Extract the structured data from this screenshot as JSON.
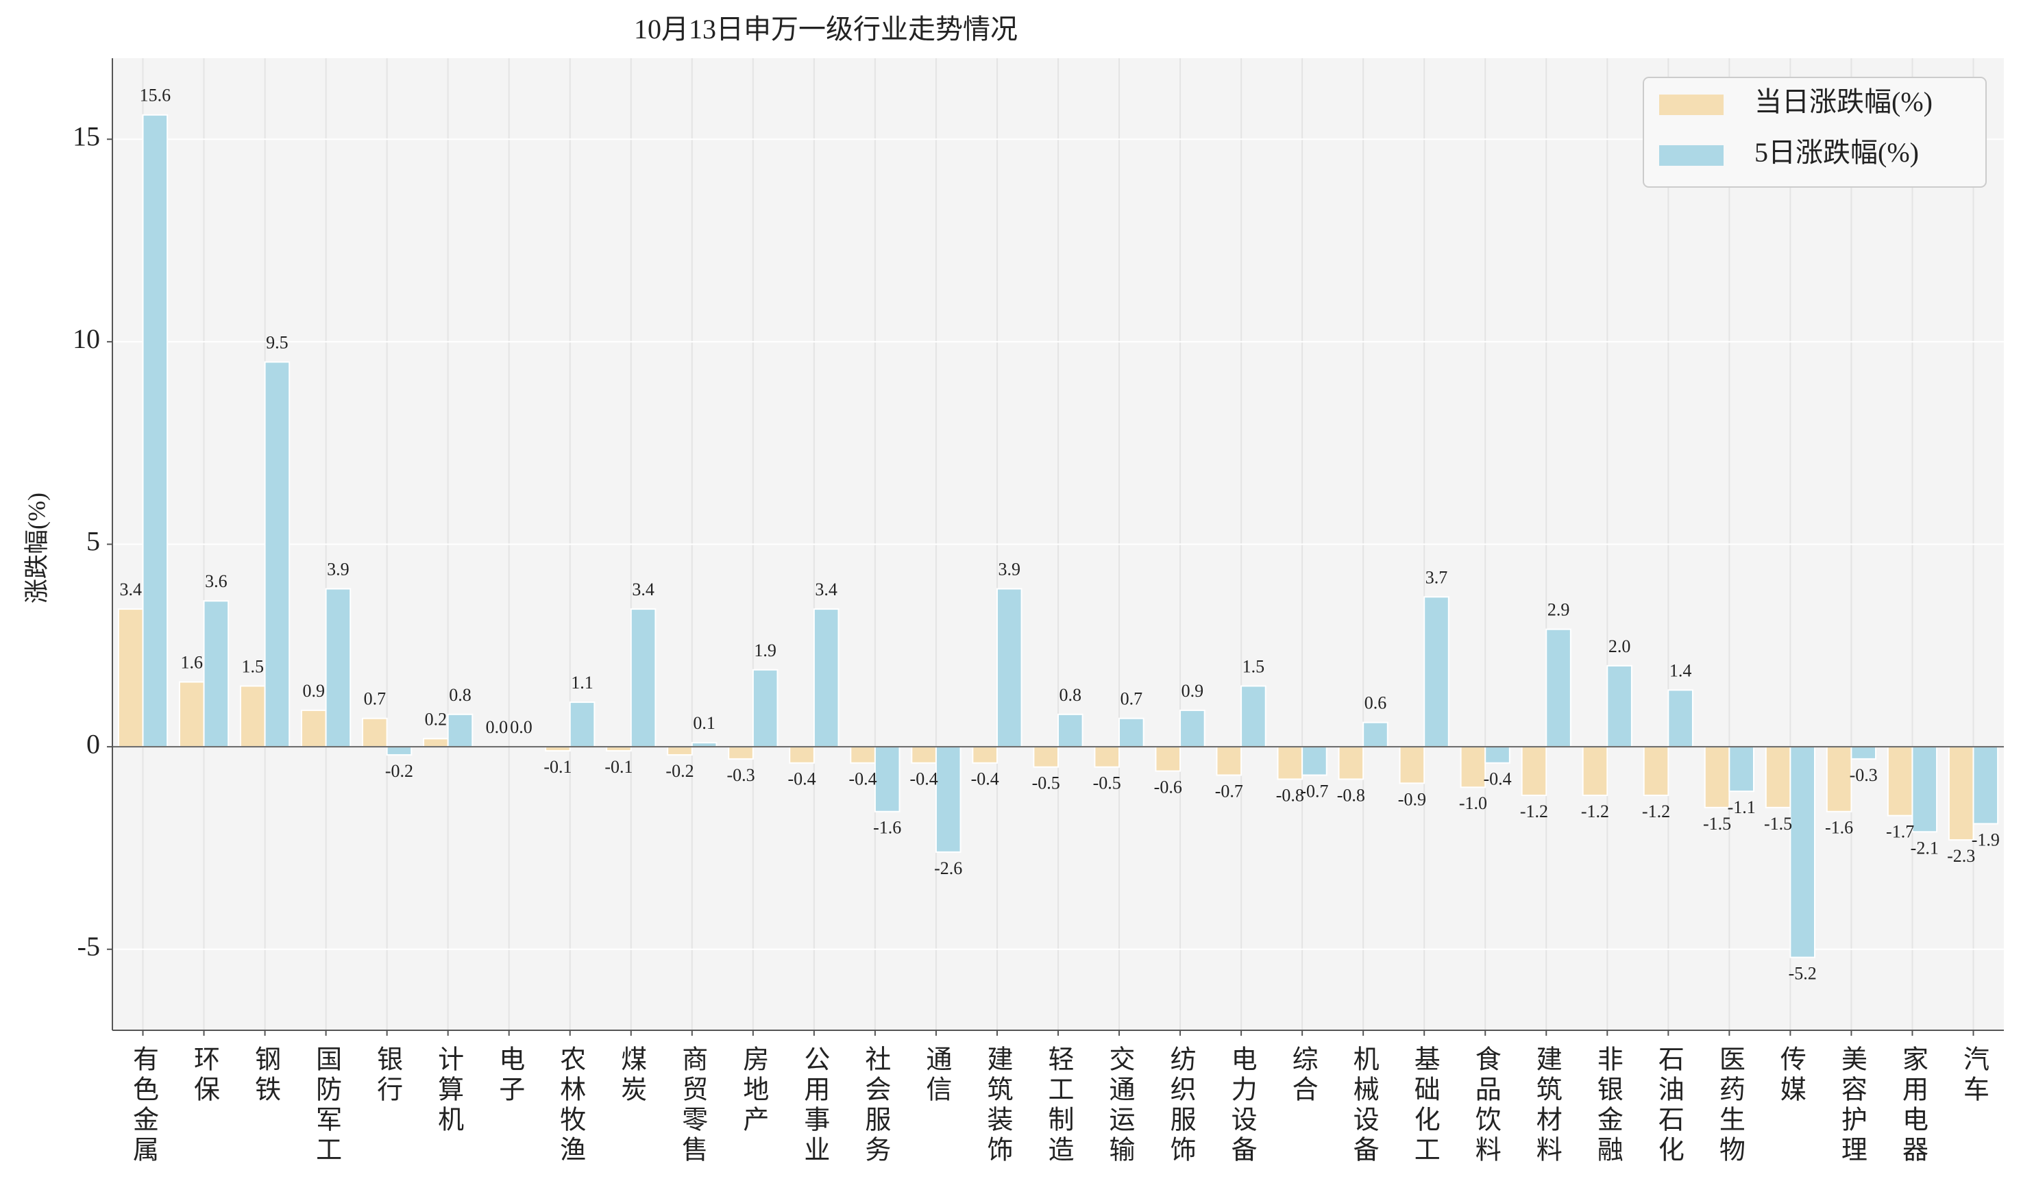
{
  "chart_data": {
    "type": "bar",
    "title": "10月13日申万一级行业走势情况",
    "y_label": "涨跌幅(%)",
    "categories": [
      "有色金属",
      "环保",
      "钢铁",
      "国防军工",
      "银行",
      "计算机",
      "电子",
      "农林牧渔",
      "煤炭",
      "商贸零售",
      "房地产",
      "公用事业",
      "社会服务",
      "通信",
      "建筑装饰",
      "轻工制造",
      "交通运输",
      "纺织服饰",
      "电力设备",
      "综合",
      "机械设备",
      "基础化工",
      "食品饮料",
      "建筑材料",
      "非银金融",
      "石油石化",
      "医药生物",
      "传媒",
      "美容护理",
      "家用电器",
      "汽车"
    ],
    "series": [
      {
        "name": "当日涨跌幅(%)",
        "color": "#f5deb3",
        "values": [
          3.4,
          1.6,
          1.5,
          0.9,
          0.7,
          0.2,
          0.0,
          -0.1,
          -0.1,
          -0.2,
          -0.3,
          -0.4,
          -0.4,
          -0.4,
          -0.4,
          -0.5,
          -0.5,
          -0.6,
          -0.7,
          -0.8,
          -0.8,
          -0.9,
          -1.0,
          -1.2,
          -1.2,
          -1.2,
          -1.5,
          -1.5,
          -1.6,
          -1.7,
          -2.3
        ],
        "value_labels": [
          "3.4",
          "1.6",
          "1.5",
          "0.9",
          "0.7",
          "0.2",
          "0.0",
          "-0.1",
          "-0.1",
          "-0.2",
          "-0.3",
          "-0.4",
          "-0.4",
          "-0.4",
          "-0.4",
          "-0.5",
          "-0.5",
          "-0.6",
          "-0.7",
          "-0.8",
          "-0.8",
          "-0.9",
          "-1.0",
          "-1.2",
          "-1.2",
          "-1.2",
          "-1.5",
          "-1.5",
          "-1.6",
          "-1.7",
          "-2.3"
        ]
      },
      {
        "name": "5日涨跌幅(%)",
        "color": "#add8e6",
        "values": [
          15.6,
          3.6,
          9.5,
          3.9,
          -0.2,
          0.8,
          0.0,
          1.1,
          3.4,
          0.1,
          1.9,
          3.4,
          -1.6,
          -2.6,
          3.9,
          0.8,
          0.7,
          0.9,
          1.5,
          -0.7,
          0.6,
          3.7,
          -0.4,
          2.9,
          2.0,
          1.4,
          -1.1,
          -5.2,
          -0.3,
          -2.1,
          -1.9
        ],
        "value_labels": [
          "15.6",
          "3.6",
          "9.5",
          "3.9",
          "-0.2",
          "0.8",
          "0.0",
          "1.1",
          "3.4",
          "0.1",
          "1.9",
          "3.4",
          "-1.6",
          "-2.6",
          "3.9",
          "0.8",
          "0.7",
          "0.9",
          "1.5",
          "-0.7",
          "0.6",
          "3.7",
          "-0.4",
          "2.9",
          "2.0",
          "1.4",
          "-1.1",
          "-5.2",
          "-0.3",
          "-2.1",
          "-1.9"
        ]
      }
    ],
    "ylim": [
      -7,
      17
    ],
    "yticks": [
      -5,
      0,
      5,
      10,
      15
    ],
    "grid": true,
    "legend": "upper right"
  }
}
